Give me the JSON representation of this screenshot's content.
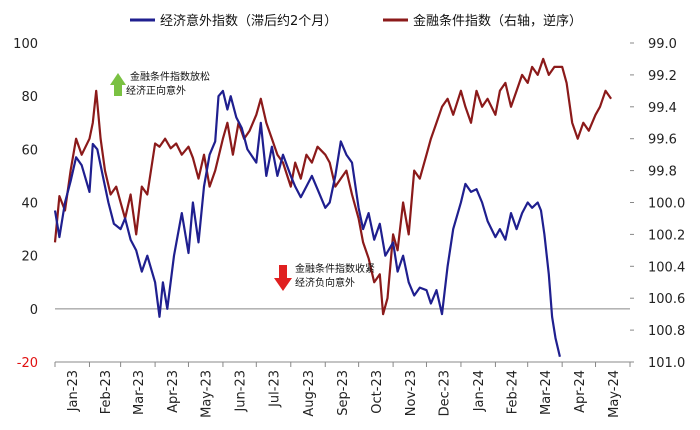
{
  "chart_data": {
    "type": "line",
    "legend": {
      "placement": "top"
    },
    "grid": false,
    "x_ticks": [
      "Jan-23",
      "Feb-23",
      "Mar-23",
      "Apr-23",
      "May-23",
      "Jun-23",
      "Jul-23",
      "Aug-23",
      "Sep-23",
      "Oct-23",
      "Nov-23",
      "Dec-23",
      "Jan-24",
      "Feb-24",
      "Mar-24",
      "Apr-24",
      "May-24"
    ],
    "y_left": {
      "ylim": [
        -20,
        100
      ],
      "ticks": [
        "100",
        "80",
        "60",
        "40",
        "20",
        "0",
        "-20"
      ]
    },
    "y_right": {
      "ylim": [
        99.0,
        101.0
      ],
      "inverted": true,
      "ticks": [
        "99.0",
        "99.2",
        "99.4",
        "99.6",
        "99.8",
        "100.0",
        "100.2",
        "100.4",
        "100.6",
        "100.8",
        "101.0"
      ]
    },
    "series": [
      {
        "name": "经济意外指数（滞后约2个月）",
        "axis": "left",
        "color": "#1f1f8f",
        "points": [
          [
            "2023-01-01",
            37
          ],
          [
            "2023-01-05",
            27
          ],
          [
            "2023-01-10",
            40
          ],
          [
            "2023-01-15",
            48
          ],
          [
            "2023-01-20",
            57
          ],
          [
            "2023-01-25",
            54
          ],
          [
            "2023-02-01",
            44
          ],
          [
            "2023-02-04",
            62
          ],
          [
            "2023-02-08",
            60
          ],
          [
            "2023-02-13",
            50
          ],
          [
            "2023-02-18",
            40
          ],
          [
            "2023-02-23",
            32
          ],
          [
            "2023-03-01",
            30
          ],
          [
            "2023-03-05",
            34
          ],
          [
            "2023-03-10",
            26
          ],
          [
            "2023-03-15",
            22
          ],
          [
            "2023-03-20",
            14
          ],
          [
            "2023-03-25",
            20
          ],
          [
            "2023-04-01",
            10
          ],
          [
            "2023-04-05",
            -3
          ],
          [
            "2023-04-08",
            10
          ],
          [
            "2023-04-12",
            0
          ],
          [
            "2023-04-18",
            20
          ],
          [
            "2023-04-25",
            36
          ],
          [
            "2023-05-01",
            21
          ],
          [
            "2023-05-05",
            40
          ],
          [
            "2023-05-10",
            25
          ],
          [
            "2023-05-15",
            46
          ],
          [
            "2023-05-20",
            58
          ],
          [
            "2023-05-25",
            63
          ],
          [
            "2023-05-28",
            80
          ],
          [
            "2023-06-01",
            82
          ],
          [
            "2023-06-05",
            75
          ],
          [
            "2023-06-08",
            80
          ],
          [
            "2023-06-13",
            72
          ],
          [
            "2023-06-18",
            68
          ],
          [
            "2023-06-23",
            60
          ],
          [
            "2023-07-01",
            55
          ],
          [
            "2023-07-05",
            70
          ],
          [
            "2023-07-10",
            50
          ],
          [
            "2023-07-15",
            61
          ],
          [
            "2023-07-20",
            50
          ],
          [
            "2023-07-25",
            58
          ],
          [
            "2023-08-01",
            50
          ],
          [
            "2023-08-05",
            46
          ],
          [
            "2023-08-10",
            42
          ],
          [
            "2023-08-15",
            46
          ],
          [
            "2023-08-20",
            50
          ],
          [
            "2023-08-25",
            45
          ],
          [
            "2023-09-01",
            38
          ],
          [
            "2023-09-05",
            40
          ],
          [
            "2023-09-10",
            50
          ],
          [
            "2023-09-15",
            63
          ],
          [
            "2023-09-20",
            58
          ],
          [
            "2023-09-25",
            55
          ],
          [
            "2023-10-01",
            38
          ],
          [
            "2023-10-05",
            30
          ],
          [
            "2023-10-10",
            36
          ],
          [
            "2023-10-15",
            26
          ],
          [
            "2023-10-20",
            32
          ],
          [
            "2023-10-25",
            20
          ],
          [
            "2023-11-01",
            25
          ],
          [
            "2023-11-05",
            14
          ],
          [
            "2023-11-10",
            20
          ],
          [
            "2023-11-15",
            10
          ],
          [
            "2023-11-20",
            5
          ],
          [
            "2023-11-25",
            8
          ],
          [
            "2023-12-01",
            7
          ],
          [
            "2023-12-05",
            2
          ],
          [
            "2023-12-10",
            7
          ],
          [
            "2023-12-15",
            -2
          ],
          [
            "2023-12-20",
            16
          ],
          [
            "2023-12-25",
            30
          ],
          [
            "2024-01-01",
            40
          ],
          [
            "2024-01-05",
            47
          ],
          [
            "2024-01-10",
            44
          ],
          [
            "2024-01-15",
            45
          ],
          [
            "2024-01-20",
            40
          ],
          [
            "2024-01-25",
            33
          ],
          [
            "2024-02-01",
            27
          ],
          [
            "2024-02-05",
            30
          ],
          [
            "2024-02-10",
            26
          ],
          [
            "2024-02-15",
            36
          ],
          [
            "2024-02-20",
            30
          ],
          [
            "2024-02-25",
            36
          ],
          [
            "2024-03-01",
            40
          ],
          [
            "2024-03-05",
            38
          ],
          [
            "2024-03-10",
            40
          ],
          [
            "2024-03-13",
            37
          ],
          [
            "2024-03-16",
            28
          ],
          [
            "2024-03-20",
            13
          ],
          [
            "2024-03-23",
            -3
          ],
          [
            "2024-03-26",
            -11
          ],
          [
            "2024-03-30",
            -18
          ]
        ]
      },
      {
        "name": "金融条件指数（右轴，逆序）",
        "axis": "right",
        "color": "#8b1a1a",
        "points": [
          [
            "2023-01-01",
            100.25
          ],
          [
            "2023-01-05",
            99.96
          ],
          [
            "2023-01-10",
            100.05
          ],
          [
            "2023-01-15",
            99.8
          ],
          [
            "2023-01-20",
            99.6
          ],
          [
            "2023-01-25",
            99.7
          ],
          [
            "2023-02-01",
            99.6
          ],
          [
            "2023-02-04",
            99.5
          ],
          [
            "2023-02-07",
            99.3
          ],
          [
            "2023-02-11",
            99.6
          ],
          [
            "2023-02-15",
            99.8
          ],
          [
            "2023-02-20",
            99.95
          ],
          [
            "2023-02-25",
            99.9
          ],
          [
            "2023-03-01",
            100.0
          ],
          [
            "2023-03-05",
            100.1
          ],
          [
            "2023-03-10",
            99.95
          ],
          [
            "2023-03-15",
            100.2
          ],
          [
            "2023-03-20",
            99.9
          ],
          [
            "2023-03-25",
            99.95
          ],
          [
            "2023-04-01",
            99.63
          ],
          [
            "2023-04-05",
            99.65
          ],
          [
            "2023-04-10",
            99.6
          ],
          [
            "2023-04-15",
            99.66
          ],
          [
            "2023-04-20",
            99.63
          ],
          [
            "2023-04-25",
            99.7
          ],
          [
            "2023-05-01",
            99.65
          ],
          [
            "2023-05-05",
            99.72
          ],
          [
            "2023-05-10",
            99.85
          ],
          [
            "2023-05-15",
            99.7
          ],
          [
            "2023-05-20",
            99.9
          ],
          [
            "2023-05-25",
            99.8
          ],
          [
            "2023-06-01",
            99.6
          ],
          [
            "2023-06-05",
            99.5
          ],
          [
            "2023-06-10",
            99.7
          ],
          [
            "2023-06-15",
            99.5
          ],
          [
            "2023-06-20",
            99.6
          ],
          [
            "2023-06-25",
            99.55
          ],
          [
            "2023-07-01",
            99.45
          ],
          [
            "2023-07-05",
            99.35
          ],
          [
            "2023-07-10",
            99.5
          ],
          [
            "2023-07-15",
            99.6
          ],
          [
            "2023-07-20",
            99.7
          ],
          [
            "2023-07-25",
            99.75
          ],
          [
            "2023-08-01",
            99.9
          ],
          [
            "2023-08-05",
            99.75
          ],
          [
            "2023-08-10",
            99.85
          ],
          [
            "2023-08-15",
            99.7
          ],
          [
            "2023-08-20",
            99.75
          ],
          [
            "2023-08-25",
            99.65
          ],
          [
            "2023-09-01",
            99.7
          ],
          [
            "2023-09-05",
            99.75
          ],
          [
            "2023-09-10",
            99.9
          ],
          [
            "2023-09-15",
            99.85
          ],
          [
            "2023-09-20",
            99.8
          ],
          [
            "2023-09-25",
            99.95
          ],
          [
            "2023-10-01",
            100.1
          ],
          [
            "2023-10-05",
            100.25
          ],
          [
            "2023-10-10",
            100.35
          ],
          [
            "2023-10-15",
            100.5
          ],
          [
            "2023-10-20",
            100.45
          ],
          [
            "2023-10-23",
            100.7
          ],
          [
            "2023-10-27",
            100.6
          ],
          [
            "2023-11-01",
            100.2
          ],
          [
            "2023-11-05",
            100.3
          ],
          [
            "2023-11-10",
            100.0
          ],
          [
            "2023-11-15",
            100.2
          ],
          [
            "2023-11-20",
            99.8
          ],
          [
            "2023-11-25",
            99.85
          ],
          [
            "2023-12-01",
            99.7
          ],
          [
            "2023-12-05",
            99.6
          ],
          [
            "2023-12-10",
            99.5
          ],
          [
            "2023-12-15",
            99.4
          ],
          [
            "2023-12-20",
            99.35
          ],
          [
            "2023-12-25",
            99.45
          ],
          [
            "2024-01-01",
            99.3
          ],
          [
            "2024-01-05",
            99.4
          ],
          [
            "2024-01-10",
            99.5
          ],
          [
            "2024-01-15",
            99.3
          ],
          [
            "2024-01-20",
            99.4
          ],
          [
            "2024-01-25",
            99.35
          ],
          [
            "2024-02-01",
            99.45
          ],
          [
            "2024-02-05",
            99.3
          ],
          [
            "2024-02-10",
            99.25
          ],
          [
            "2024-02-15",
            99.4
          ],
          [
            "2024-02-20",
            99.3
          ],
          [
            "2024-02-25",
            99.2
          ],
          [
            "2024-03-01",
            99.25
          ],
          [
            "2024-03-05",
            99.15
          ],
          [
            "2024-03-10",
            99.2
          ],
          [
            "2024-03-15",
            99.1
          ],
          [
            "2024-03-20",
            99.2
          ],
          [
            "2024-03-25",
            99.15
          ],
          [
            "2024-04-01",
            99.15
          ],
          [
            "2024-04-05",
            99.25
          ],
          [
            "2024-04-10",
            99.5
          ],
          [
            "2024-04-15",
            99.6
          ],
          [
            "2024-04-20",
            99.5
          ],
          [
            "2024-04-25",
            99.55
          ],
          [
            "2024-05-01",
            99.45
          ],
          [
            "2024-05-05",
            99.4
          ],
          [
            "2024-05-10",
            99.3
          ],
          [
            "2024-05-15",
            99.35
          ]
        ]
      }
    ],
    "annotations": [
      {
        "line1": "金融条件指数放松",
        "line2": "经济正向意外",
        "arrow": "up",
        "arrow_color": "#7ac142"
      },
      {
        "line1": "金融条件指数收紧",
        "line2": "经济负向意外",
        "arrow": "down",
        "arrow_color": "#e02020"
      }
    ]
  }
}
